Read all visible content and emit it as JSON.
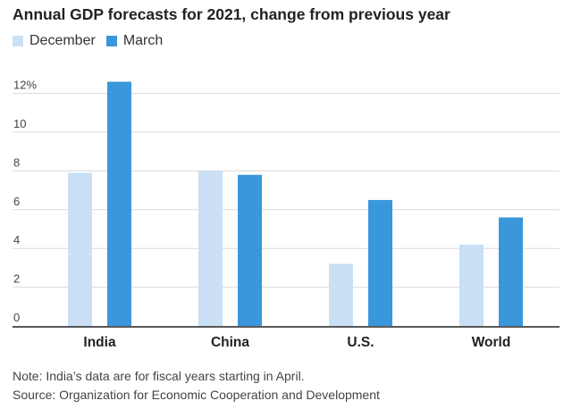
{
  "chart_data": {
    "type": "bar",
    "title": "Annual GDP forecasts for 2021, change from previous year",
    "categories": [
      "India",
      "China",
      "U.S.",
      "World"
    ],
    "series": [
      {
        "name": "December",
        "color": "#c9e0f5",
        "values": [
          7.9,
          8.0,
          3.2,
          4.2
        ]
      },
      {
        "name": "March",
        "color": "#3a97dc",
        "values": [
          12.6,
          7.8,
          6.5,
          5.6
        ]
      }
    ],
    "ylim": [
      0,
      12.5
    ],
    "yticks": [
      0,
      2,
      4,
      6,
      8,
      10,
      12
    ],
    "ytick_labels": [
      "0",
      "2",
      "4",
      "6",
      "8",
      "10",
      "12%"
    ],
    "xlabel": "",
    "ylabel": "",
    "grid": true,
    "legend_position": "top-left"
  },
  "notes": {
    "note": "Note: India’s data are for fiscal years starting in April.",
    "source": "Source: Organization for Economic Cooperation and Development"
  }
}
